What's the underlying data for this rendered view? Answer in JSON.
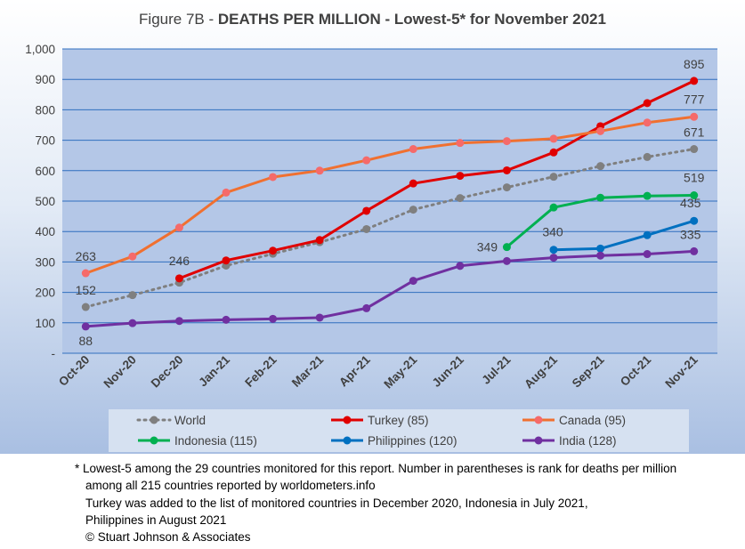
{
  "title": {
    "prefix": "Figure 7B - ",
    "bold": "DEATHS PER MILLION - Lowest-5* for November 2021"
  },
  "chart_data": {
    "type": "line",
    "title": "Figure 7B - DEATHS PER MILLION - Lowest-5* for November 2021",
    "categories": [
      "Oct-20",
      "Nov-20",
      "Dec-20",
      "Jan-21",
      "Feb-21",
      "Mar-21",
      "Apr-21",
      "May-21",
      "Jun-21",
      "Jul-21",
      "Aug-21",
      "Sep-21",
      "Oct-21",
      "Nov-21"
    ],
    "y_ticks": [
      "-",
      "100",
      "200",
      "300",
      "400",
      "500",
      "600",
      "700",
      "800",
      "900",
      "1,000"
    ],
    "ylim": [
      0,
      1000
    ],
    "grid": true,
    "legend_position": "bottom",
    "series": [
      {
        "name": "World",
        "color": "#7f7f7f",
        "dotted": true,
        "values": [
          152,
          191,
          232,
          288,
          327,
          365,
          408,
          472,
          510,
          545,
          580,
          615,
          645,
          671
        ],
        "labels": [
          {
            "i": 0,
            "text": "152"
          },
          {
            "i": 13,
            "text": "671"
          }
        ]
      },
      {
        "name": "Turkey (85)",
        "color": "#e00000",
        "dotted": false,
        "values": [
          null,
          null,
          246,
          305,
          337,
          372,
          468,
          558,
          583,
          601,
          660,
          746,
          822,
          895
        ],
        "labels": [
          {
            "i": 2,
            "text": "246"
          },
          {
            "i": 13,
            "text": "895"
          }
        ]
      },
      {
        "name": "Canada (95)",
        "color": "#f07030",
        "marker": "#f56a6a",
        "dotted": false,
        "values": [
          263,
          318,
          413,
          528,
          579,
          600,
          634,
          671,
          691,
          697,
          705,
          730,
          758,
          777
        ],
        "labels": [
          {
            "i": 0,
            "text": "263"
          },
          {
            "i": 13,
            "text": "777"
          }
        ]
      },
      {
        "name": "Indonesia (115)",
        "color": "#00b050",
        "dotted": false,
        "values": [
          null,
          null,
          null,
          null,
          null,
          null,
          null,
          null,
          null,
          349,
          479,
          511,
          517,
          519
        ],
        "labels": [
          {
            "i": 9,
            "text": "349"
          },
          {
            "i": 13,
            "text": "519"
          }
        ]
      },
      {
        "name": "Philippines (120)",
        "color": "#0070c0",
        "dotted": false,
        "values": [
          null,
          null,
          null,
          null,
          null,
          null,
          null,
          null,
          null,
          null,
          340,
          344,
          388,
          435
        ],
        "labels": [
          {
            "i": 10,
            "text": "340"
          },
          {
            "i": 13,
            "text": "435"
          }
        ]
      },
      {
        "name": "India (128)",
        "color": "#7030a0",
        "dotted": false,
        "values": [
          88,
          99,
          106,
          110,
          113,
          117,
          148,
          238,
          287,
          303,
          314,
          321,
          326,
          335
        ],
        "labels": [
          {
            "i": 0,
            "text": "88"
          },
          {
            "i": 13,
            "text": "335"
          }
        ]
      }
    ]
  },
  "footnote": {
    "line1": "* Lowest-5 among the 29 countries monitored for this report. Number in parentheses is rank for deaths per million",
    "line2": "among all 215 countries reported by worldometers.info",
    "line3": "Turkey was added to the list of monitored countries in December 2020, Indonesia in July 2021,",
    "line4": "Philippines in August 2021",
    "line5": "© Stuart Johnson & Associates"
  }
}
